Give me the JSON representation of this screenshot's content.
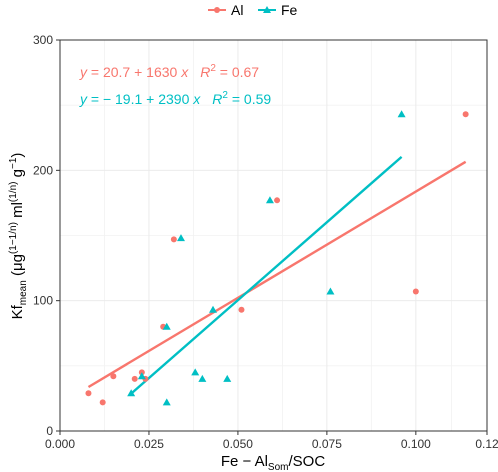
{
  "chart_data": {
    "type": "scatter",
    "xlabel": "Fe − Al_Som/SOC",
    "ylabel": "Kf_mean (μg^(1−1/n) ml^(1/n) g^−1)",
    "xlim": [
      0.0,
      0.12
    ],
    "ylim": [
      0,
      300
    ],
    "x_ticks": [
      0.0,
      0.025,
      0.05,
      0.075,
      0.1,
      0.12
    ],
    "x_tick_labels": [
      "0.000",
      "0.025",
      "0.050",
      "0.075",
      "0.100",
      "0.12"
    ],
    "y_ticks": [
      0,
      100,
      200,
      300
    ],
    "y_tick_labels": [
      "0",
      "100",
      "200",
      "300"
    ],
    "grid": true,
    "legend_position": "top",
    "series": [
      {
        "name": "Al",
        "color": "#F8766D",
        "marker": "circle",
        "points": [
          [
            0.008,
            29
          ],
          [
            0.012,
            22
          ],
          [
            0.015,
            42
          ],
          [
            0.021,
            40
          ],
          [
            0.023,
            45
          ],
          [
            0.024,
            40
          ],
          [
            0.029,
            80
          ],
          [
            0.032,
            147
          ],
          [
            0.051,
            93
          ],
          [
            0.061,
            177
          ],
          [
            0.1,
            107
          ],
          [
            0.114,
            243
          ]
        ],
        "fit": {
          "intercept": 20.7,
          "slope": 1630,
          "r2": 0.67,
          "x_range": [
            0.008,
            0.114
          ],
          "label_y": "y",
          "label_formula": " = 20.7 + 1630 ",
          "label_x": "x",
          "label_r": "R",
          "label_r_sup": "2",
          "label_r_value": " = 0.67"
        }
      },
      {
        "name": "Fe",
        "color": "#00BFC4",
        "marker": "triangle",
        "points": [
          [
            0.02,
            29
          ],
          [
            0.023,
            42
          ],
          [
            0.03,
            80
          ],
          [
            0.03,
            22
          ],
          [
            0.034,
            148
          ],
          [
            0.038,
            45
          ],
          [
            0.04,
            40
          ],
          [
            0.043,
            93
          ],
          [
            0.047,
            40
          ],
          [
            0.059,
            177
          ],
          [
            0.076,
            107
          ],
          [
            0.096,
            243
          ]
        ],
        "fit": {
          "intercept": -19.1,
          "slope": 2390,
          "r2": 0.59,
          "x_range": [
            0.02,
            0.096
          ],
          "label_y": "y",
          "label_formula": " = − 19.1 + 2390 ",
          "label_x": "x",
          "label_r": "R",
          "label_r_sup": "2",
          "label_r_value": " = 0.59"
        }
      }
    ]
  },
  "axis_title_parts": {
    "x_main": "Fe − Al",
    "x_sub": "Som",
    "x_tail": "/SOC",
    "y_main": "Kf",
    "y_sub": "mean",
    "y_open": " (μg",
    "y_sup1": "(1−1/n)",
    "y_mid": " ml",
    "y_sup2": "(1/n)",
    "y_g": " g",
    "y_sup3": "−1",
    "y_close": ")"
  }
}
